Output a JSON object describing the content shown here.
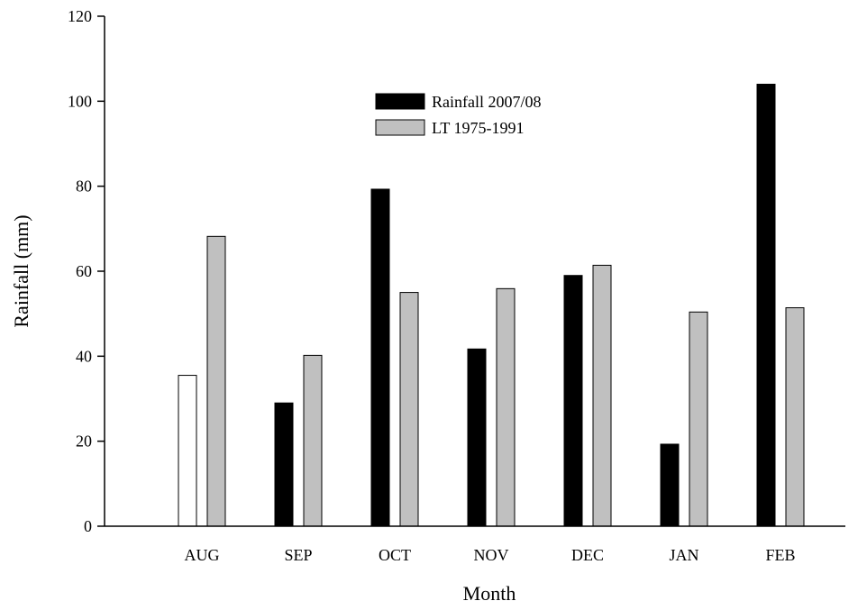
{
  "chart_data": {
    "type": "bar",
    "title": "",
    "xlabel": "Month",
    "ylabel": "Rainfall (mm)",
    "ylim": [
      0,
      120
    ],
    "yticks": [
      0,
      20,
      40,
      60,
      80,
      100,
      120
    ],
    "categories": [
      "AUG",
      "SEP",
      "OCT",
      "NOV",
      "DEC",
      "JAN",
      "FEB"
    ],
    "series": [
      {
        "name": "Rainfall 2007/08",
        "color": "#000000",
        "values": [
          35.5,
          29,
          79.3,
          41.7,
          59,
          19.3,
          104
        ]
      },
      {
        "name": "LT 1975-1991",
        "color": "#c0c0c0",
        "values": [
          68.2,
          40.2,
          55,
          55.9,
          61.4,
          50.4,
          51.4
        ]
      }
    ],
    "special_colors": {
      "series_0_category_0": "#ffffff"
    },
    "legend": "top-center",
    "grid": false
  }
}
